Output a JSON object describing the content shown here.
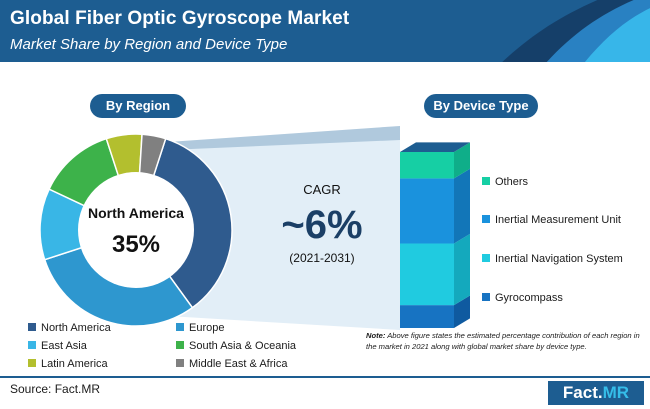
{
  "header": {
    "title": "Global Fiber Optic Gyroscope Market",
    "subtitle": "Market Share by Region and Device Type"
  },
  "by_region_label": "By Region",
  "by_device_label": "By Device Type",
  "center": {
    "region": "North America",
    "share": "35%"
  },
  "cagr": {
    "label": "CAGR",
    "value": "~6%",
    "period": "(2021-2031)"
  },
  "note": {
    "prefix": "Note:",
    "text": "Above figure states the estimated percentage contribution of each region in the market in 2021 along with global market share by device type."
  },
  "source": "Source: Fact.MR",
  "logo": {
    "part1": "Fact.",
    "part2": "MR"
  },
  "colors": {
    "north_america": "#2f5b8e",
    "europe": "#2e97cf",
    "east_asia": "#39b6e6",
    "south_asia_oceania": "#3db24a",
    "latin_america": "#b3bf2e",
    "middle_east_africa": "#808080",
    "others": "#16cfa4",
    "imu": "#1a92dd",
    "ins": "#20cbe0",
    "gyrocompass": "#1773c2"
  },
  "chart_data": [
    {
      "type": "pie",
      "variant": "donut",
      "categories": [
        "North America",
        "Europe",
        "East Asia",
        "South Asia & Oceania",
        "Latin America",
        "Middle East & Africa"
      ],
      "values": [
        35,
        30,
        12,
        13,
        6,
        4
      ],
      "legend": [
        {
          "label": "North America",
          "color": "#2f5b8e"
        },
        {
          "label": "Europe",
          "color": "#2e97cf"
        },
        {
          "label": "East Asia",
          "color": "#39b6e6"
        },
        {
          "label": "South Asia & Oceania",
          "color": "#3db24a"
        },
        {
          "label": "Latin America",
          "color": "#b3bf2e"
        },
        {
          "label": "Middle East & Africa",
          "color": "#808080"
        }
      ]
    },
    {
      "type": "bar",
      "variant": "stacked-100",
      "categories": [
        "Gyrocompass",
        "Inertial Navigation System",
        "Inertial Measurement Unit",
        "Others"
      ],
      "values": [
        13,
        35,
        37,
        15
      ],
      "legend": [
        {
          "label": "Others",
          "color": "#16cfa4"
        },
        {
          "label": "Inertial Measurement Unit",
          "color": "#1a92dd"
        },
        {
          "label": "Inertial Navigation System",
          "color": "#20cbe0"
        },
        {
          "label": "Gyrocompass",
          "color": "#1773c2"
        }
      ]
    }
  ]
}
